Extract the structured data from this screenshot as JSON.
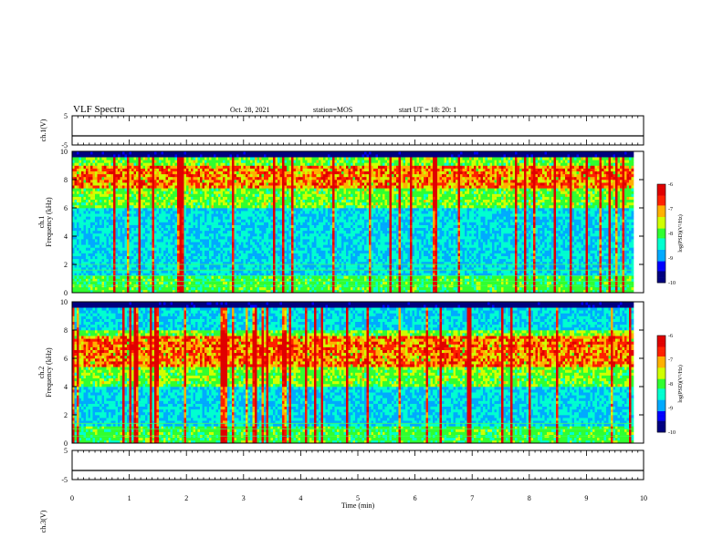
{
  "header": {
    "title": "VLF Spectra",
    "date": "Oct. 28, 2021",
    "station": "station=MOS",
    "start": "start  UT =    18: 20: 1"
  },
  "colors": {
    "colormap": [
      "#00007f",
      "#0000ff",
      "#00aaff",
      "#00ffd0",
      "#30ff30",
      "#d0ff00",
      "#ffb000",
      "#ff2000",
      "#e00000",
      "#ffffff"
    ]
  },
  "chart_data": [
    {
      "type": "line",
      "panel": "ch1-waveform",
      "ylabel": "ch.1(V)",
      "ylim": [
        -5,
        5
      ],
      "yticks": [
        "5",
        "-5"
      ],
      "x": [
        0,
        10
      ],
      "y": [
        0,
        0
      ]
    },
    {
      "type": "heatmap",
      "panel": "ch1-spectrogram",
      "ylabel": "ch.1\nFrequency (kHz)",
      "ylim": [
        0,
        10
      ],
      "yticks": [
        "0",
        "2",
        "4",
        "6",
        "8",
        "10"
      ],
      "xlim": [
        0,
        9.8
      ],
      "colorbar": {
        "label": "log(PSD)(V²/Hz)",
        "range": [
          -10,
          -6
        ],
        "ticks": [
          "-6",
          "-7",
          "-8",
          "-9",
          "-10"
        ]
      },
      "intense_band_khz": [
        7.5,
        9.0
      ],
      "frequent_lines_khz": [
        0.5,
        0.8,
        1.2,
        1.6,
        2.0
      ]
    },
    {
      "type": "heatmap",
      "panel": "ch2-spectrogram",
      "ylabel": "ch.2\nFrequency (kHz)",
      "ylim": [
        0,
        10
      ],
      "yticks": [
        "0",
        "2",
        "4",
        "6",
        "8",
        "10"
      ],
      "xlim": [
        0,
        9.8
      ],
      "colorbar": {
        "label": "log(PSD)(V²/Hz)",
        "range": [
          -10,
          -6
        ],
        "ticks": [
          "-6",
          "-7",
          "-8",
          "-9",
          "-10"
        ]
      },
      "intense_band_khz": [
        5.5,
        7.5
      ],
      "frequent_lines_khz": [
        0.5,
        1.0,
        1.4
      ]
    },
    {
      "type": "line",
      "panel": "ch3-waveform",
      "ylabel": "ch.3(V)",
      "ylim": [
        -5,
        5
      ],
      "yticks": [
        "5",
        "-5"
      ],
      "x": [
        0,
        10
      ],
      "y": [
        0,
        0
      ]
    }
  ],
  "xaxis": {
    "label": "Time  (min)",
    "range": [
      0,
      10
    ],
    "ticks": [
      "0",
      "1",
      "2",
      "3",
      "4",
      "5",
      "6",
      "7",
      "8",
      "9",
      "10"
    ]
  }
}
